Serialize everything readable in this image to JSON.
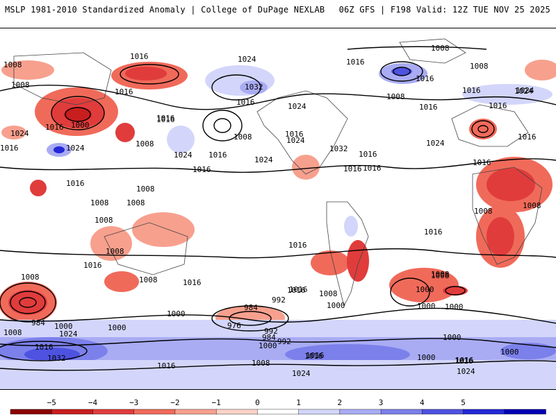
{
  "header": {
    "title": "MSLP 1981-2010 Standardized Anomaly | College of DuPage NEXLAB",
    "run_info": "06Z GFS | F198 Valid: 12Z TUE NOV 25 2025"
  },
  "map": {
    "isobar_labels": [
      "1008",
      "1016",
      "1024",
      "1032",
      "1016",
      "1008",
      "1016",
      "1024",
      "1000",
      "1016",
      "1008",
      "1024",
      "1016",
      "1016",
      "1016",
      "1008",
      "1016",
      "1024",
      "1032",
      "1016",
      "1016",
      "1024",
      "1008",
      "1016",
      "1016",
      "1024",
      "1016",
      "1016",
      "1024",
      "1008",
      "1008",
      "1024",
      "1016",
      "1016",
      "1008",
      "1016",
      "1016",
      "1024",
      "1016",
      "1024",
      "1016",
      "1016",
      "1008",
      "1008",
      "1008",
      "1008",
      "1008",
      "1016",
      "1008",
      "1016",
      "1016",
      "1016",
      "1008",
      "1016",
      "1008",
      "1008",
      "1000",
      "1000",
      "1000",
      "984",
      "1000",
      "1000",
      "1008",
      "1016",
      "1032",
      "1024",
      "1016",
      "1016",
      "1016",
      "1000",
      "984",
      "976",
      "992",
      "1000",
      "984",
      "992",
      "1000",
      "1008",
      "1016",
      "1008",
      "1000",
      "1016",
      "1016",
      "1024",
      "1024",
      "1000",
      "1008",
      "1000",
      "992"
    ]
  },
  "colorbar": {
    "ticks": [
      "−5",
      "−4",
      "−3",
      "−2",
      "−1",
      "0",
      "1",
      "2",
      "3",
      "4",
      "5"
    ],
    "colors": [
      "#8b0000",
      "#c81e1e",
      "#e03c3c",
      "#f06a5a",
      "#f7a08e",
      "#fcd2c8",
      "#ffffff",
      "#d3d6fa",
      "#a9acf3",
      "#7c80ea",
      "#4e52e0",
      "#2428d6",
      "#0000b4"
    ]
  }
}
